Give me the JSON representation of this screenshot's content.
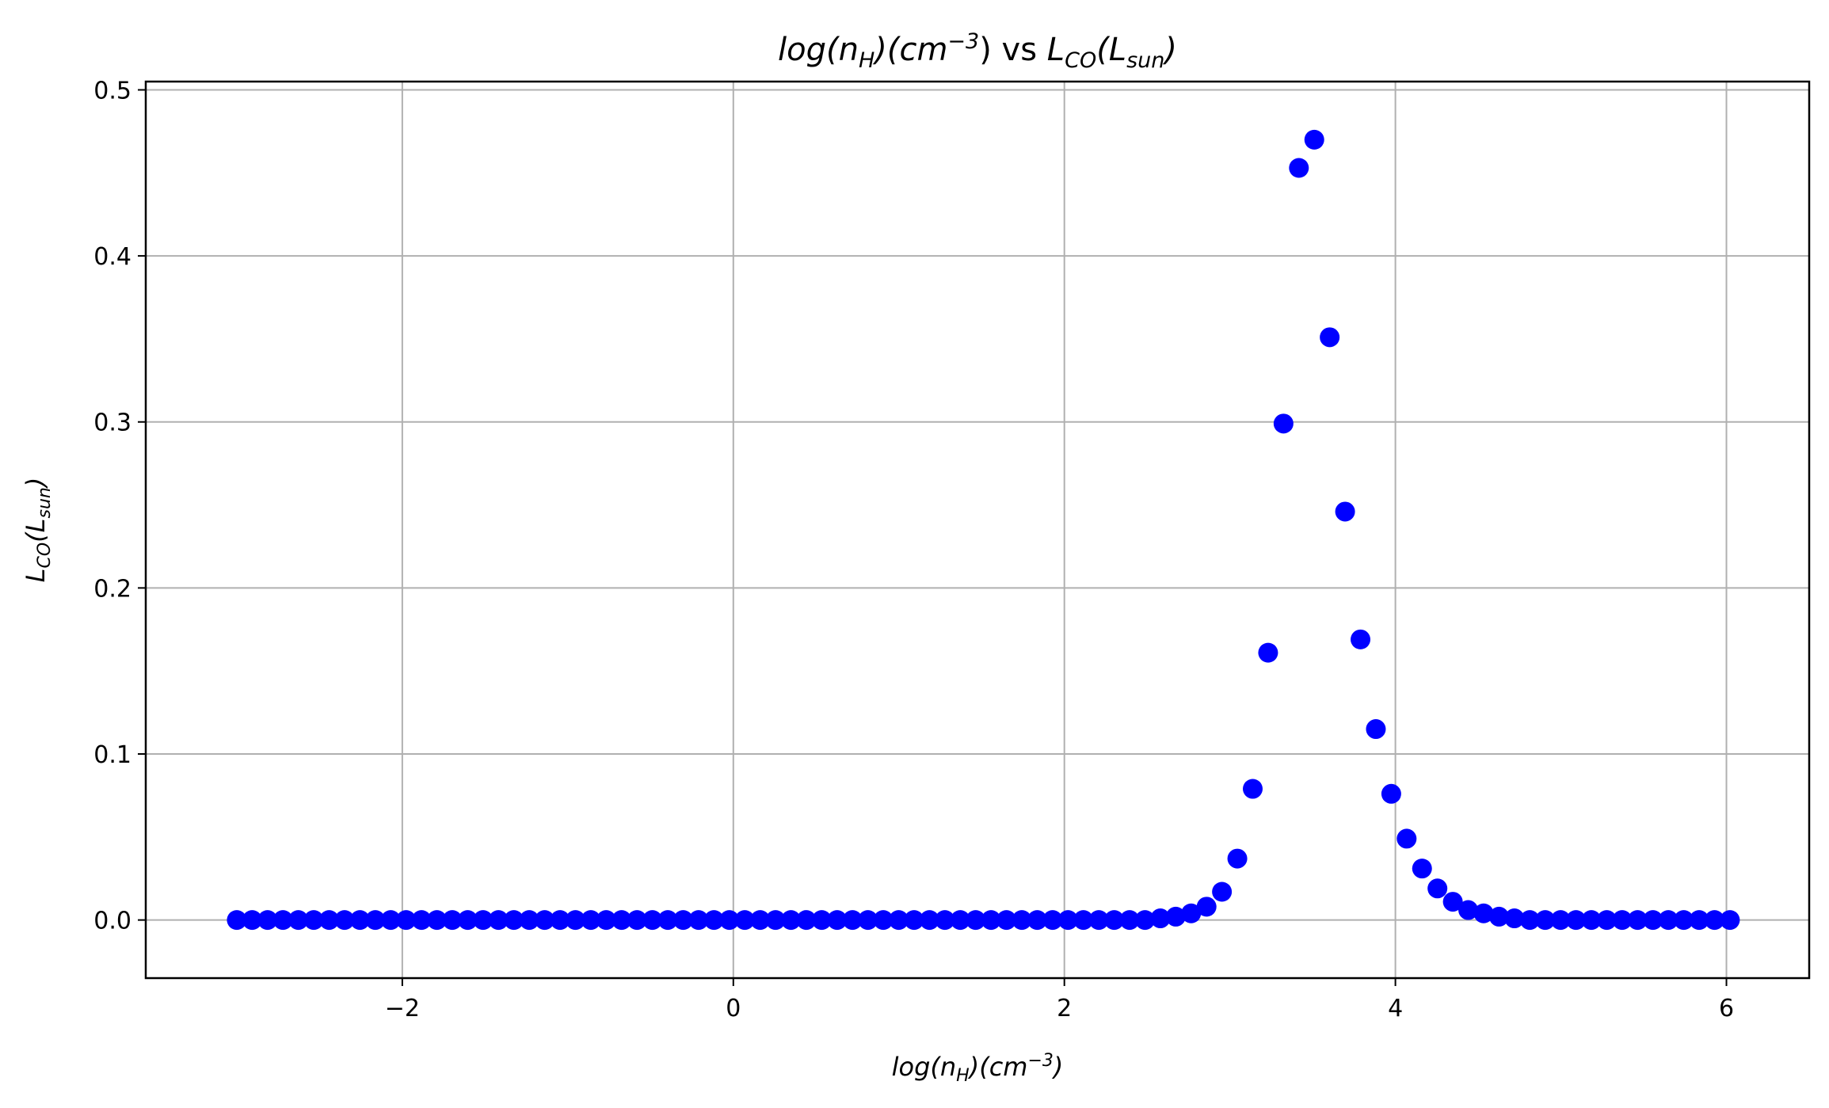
{
  "chart_data": {
    "type": "scatter",
    "title": {
      "x_part": {
        "pre": "log(n",
        "sub": "H",
        "mid": ")(cm",
        "sup": "−3",
        "post": ")"
      },
      "sep": " vs ",
      "y_part": {
        "pre": "L",
        "sub": "CO",
        "mid": "(L",
        "sub2": "sun",
        "post": ")"
      }
    },
    "xlabel": {
      "pre": "log(n",
      "sub": "H",
      "mid": ")(cm",
      "sup": "−3",
      "post": ")"
    },
    "ylabel": {
      "pre": "L",
      "sub": "CO",
      "mid": "(L",
      "sub2": "sun",
      "post": ")"
    },
    "xlim": [
      -3.55,
      6.5
    ],
    "ylim": [
      -0.035,
      0.505
    ],
    "xticks": [
      -2,
      0,
      2,
      4,
      6
    ],
    "xtick_labels": [
      "−2",
      "0",
      "2",
      "4",
      "6"
    ],
    "yticks": [
      0.0,
      0.1,
      0.2,
      0.3,
      0.4,
      0.5
    ],
    "ytick_labels": [
      "0.0",
      "0.1",
      "0.2",
      "0.3",
      "0.4",
      "0.5"
    ],
    "grid": true,
    "marker_color": "#0000ff",
    "series": [
      {
        "x": [
          -3.0,
          -2.907,
          -2.814,
          -2.721,
          -2.628,
          -2.535,
          -2.442,
          -2.349,
          -2.256,
          -2.163,
          -2.07,
          -1.977,
          -1.884,
          -1.791,
          -1.698,
          -1.605,
          -1.512,
          -1.419,
          -1.326,
          -1.233,
          -1.14,
          -1.047,
          -0.954,
          -0.861,
          -0.768,
          -0.675,
          -0.582,
          -0.489,
          -0.396,
          -0.303,
          -0.21,
          -0.117,
          -0.024,
          0.069,
          0.162,
          0.255,
          0.348,
          0.441,
          0.534,
          0.627,
          0.72,
          0.813,
          0.906,
          0.999,
          1.092,
          1.185,
          1.278,
          1.371,
          1.464,
          1.557,
          1.65,
          1.743,
          1.836,
          1.929,
          2.022,
          2.115,
          2.208,
          2.301,
          2.394,
          2.487,
          2.58,
          2.673,
          2.766,
          2.859,
          2.952,
          3.045,
          3.138,
          3.231,
          3.324,
          3.417,
          3.51,
          3.603,
          3.696,
          3.789,
          3.882,
          3.975,
          4.068,
          4.161,
          4.254,
          4.347,
          4.44,
          4.533,
          4.626,
          4.719,
          4.812,
          4.905,
          4.998,
          5.091,
          5.184,
          5.277,
          5.37,
          5.463,
          5.556,
          5.649,
          5.742,
          5.835,
          5.928,
          6.021
        ],
        "y": [
          0.0,
          0.0,
          0.0,
          0.0,
          0.0,
          0.0,
          0.0,
          0.0,
          0.0,
          0.0,
          0.0,
          0.0,
          0.0,
          0.0,
          0.0,
          0.0,
          0.0,
          0.0,
          0.0,
          0.0,
          0.0,
          0.0,
          0.0,
          0.0,
          0.0,
          0.0,
          0.0,
          0.0,
          0.0,
          0.0,
          0.0,
          0.0,
          0.0,
          0.0,
          0.0,
          0.0,
          0.0,
          0.0,
          0.0,
          0.0,
          0.0,
          0.0,
          0.0,
          0.0,
          0.0,
          0.0,
          0.0,
          0.0,
          0.0,
          0.0,
          0.0,
          0.0,
          0.0,
          0.0,
          0.0,
          0.0,
          0.0,
          0.0,
          0.0,
          0.0,
          0.001,
          0.002,
          0.004,
          0.008,
          0.017,
          0.037,
          0.079,
          0.161,
          0.299,
          0.453,
          0.47,
          0.351,
          0.246,
          0.169,
          0.115,
          0.076,
          0.049,
          0.031,
          0.019,
          0.011,
          0.006,
          0.004,
          0.002,
          0.001,
          0.0,
          0.0,
          0.0,
          0.0,
          0.0,
          0.0,
          0.0,
          0.0,
          0.0,
          0.0,
          0.0,
          0.0,
          0.0,
          0.0
        ]
      }
    ]
  }
}
